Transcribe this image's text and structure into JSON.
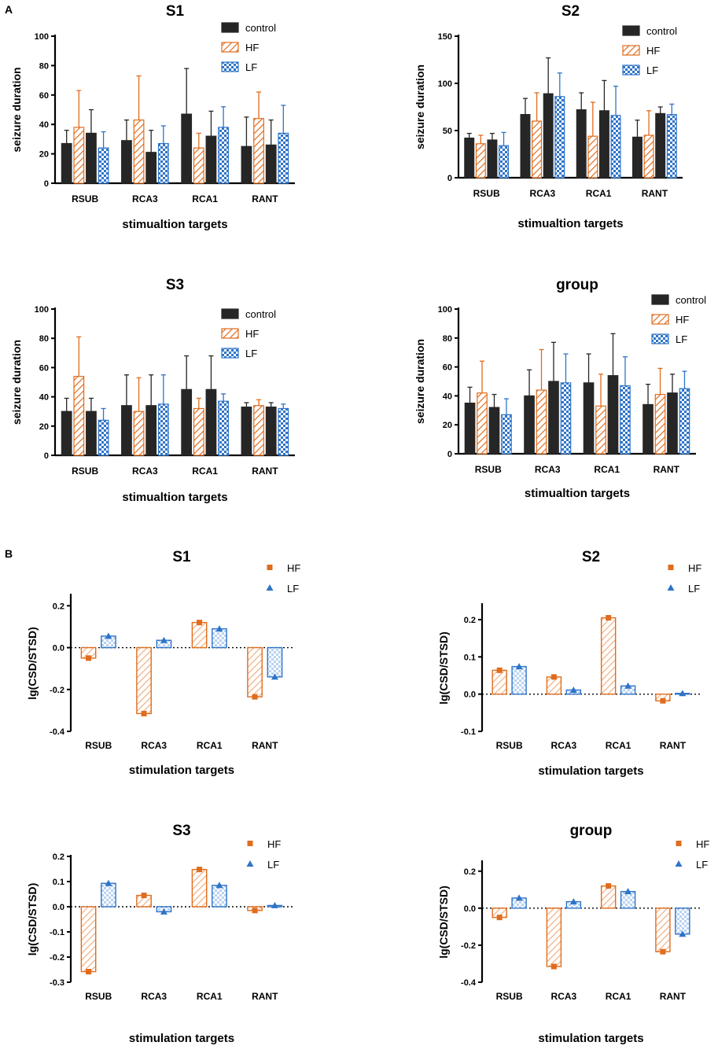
{
  "panel_labels": [
    "A",
    "B"
  ],
  "colors": {
    "control": "#262626",
    "hf": "#e06c1c",
    "lf": "#2f74c8",
    "axis": "#000000"
  },
  "chart_data": [
    {
      "type": "bar",
      "title": "S1",
      "xlabel": "stimualtion targets",
      "ylabel": "seizure duration",
      "categories": [
        "RSUB",
        "RCA3",
        "RCA1",
        "RANT"
      ],
      "ylim": [
        0,
        100
      ],
      "yticks": [
        0,
        20,
        40,
        60,
        80,
        100
      ],
      "legend": [
        "control",
        "HF",
        "LF"
      ],
      "series": [
        {
          "name": "control",
          "values": [
            27,
            29,
            47,
            25
          ],
          "errors": [
            9,
            14,
            31,
            20
          ]
        },
        {
          "name": "HF",
          "values": [
            38,
            43,
            24,
            44
          ],
          "errors": [
            25,
            30,
            10,
            18
          ]
        },
        {
          "name": "control",
          "values": [
            34,
            21,
            32,
            26
          ],
          "errors": [
            16,
            15,
            17,
            17
          ]
        },
        {
          "name": "LF",
          "values": [
            24,
            27,
            38,
            34
          ],
          "errors": [
            11,
            12,
            14,
            19
          ]
        }
      ]
    },
    {
      "type": "bar",
      "title": "S2",
      "xlabel": "stimualtion targets",
      "ylabel": "seizure duration",
      "categories": [
        "RSUB",
        "RCA3",
        "RCA1",
        "RANT"
      ],
      "ylim": [
        0,
        150
      ],
      "yticks": [
        0,
        50,
        100,
        150
      ],
      "legend": [
        "control",
        "HF",
        "LF"
      ],
      "series": [
        {
          "name": "control",
          "values": [
            42,
            67,
            72,
            43
          ],
          "errors": [
            5,
            17,
            18,
            18
          ]
        },
        {
          "name": "HF",
          "values": [
            36,
            60,
            44,
            45
          ],
          "errors": [
            9,
            30,
            36,
            26
          ]
        },
        {
          "name": "control",
          "values": [
            40,
            89,
            71,
            68
          ],
          "errors": [
            7,
            38,
            32,
            7
          ]
        },
        {
          "name": "LF",
          "values": [
            34,
            86,
            66,
            67
          ],
          "errors": [
            14,
            25,
            31,
            11
          ]
        }
      ]
    },
    {
      "type": "bar",
      "title": "S3",
      "xlabel": "stimualtion targets",
      "ylabel": "seizure duration",
      "categories": [
        "RSUB",
        "RCA3",
        "RCA1",
        "RANT"
      ],
      "ylim": [
        0,
        100
      ],
      "yticks": [
        0,
        20,
        40,
        60,
        80,
        100
      ],
      "legend": [
        "control",
        "HF",
        "LF"
      ],
      "series": [
        {
          "name": "control",
          "values": [
            30,
            34,
            45,
            33
          ],
          "errors": [
            9,
            21,
            23,
            3
          ]
        },
        {
          "name": "HF",
          "values": [
            54,
            30,
            32,
            34
          ],
          "errors": [
            27,
            23,
            7,
            4
          ]
        },
        {
          "name": "control",
          "values": [
            30,
            34,
            45,
            33
          ],
          "errors": [
            9,
            21,
            23,
            3
          ]
        },
        {
          "name": "LF",
          "values": [
            24,
            35,
            37,
            32
          ],
          "errors": [
            8,
            20,
            5,
            3
          ]
        }
      ]
    },
    {
      "type": "bar",
      "title": "group",
      "xlabel": "stimualtion targets",
      "ylabel": "seizure duration",
      "categories": [
        "RSUB",
        "RCA3",
        "RCA1",
        "RANT"
      ],
      "ylim": [
        0,
        100
      ],
      "yticks": [
        0,
        20,
        40,
        60,
        80,
        100
      ],
      "legend": [
        "control",
        "HF",
        "LF"
      ],
      "series": [
        {
          "name": "control",
          "values": [
            35,
            40,
            49,
            34
          ],
          "errors": [
            11,
            18,
            20,
            14
          ]
        },
        {
          "name": "HF",
          "values": [
            42,
            44,
            33,
            41
          ],
          "errors": [
            22,
            28,
            22,
            18
          ]
        },
        {
          "name": "control",
          "values": [
            32,
            50,
            54,
            42
          ],
          "errors": [
            9,
            27,
            29,
            13
          ]
        },
        {
          "name": "LF",
          "values": [
            27,
            49,
            47,
            45
          ],
          "errors": [
            11,
            20,
            20,
            12
          ]
        }
      ]
    },
    {
      "type": "bar",
      "title": "S1",
      "xlabel": "stimulation targets",
      "ylabel": "lg(CSD/STSD)",
      "categories": [
        "RSUB",
        "RCA3",
        "RCA1",
        "RANT"
      ],
      "ylim": [
        -0.4,
        0.25
      ],
      "yticks": [
        -0.4,
        -0.2,
        0.0,
        0.2
      ],
      "ytick_labels": [
        "-0.4",
        "-0.2",
        "0.0",
        "0.2"
      ],
      "legend": [
        "HF",
        "LF"
      ],
      "series": [
        {
          "name": "HF",
          "values": [
            -0.05,
            -0.315,
            0.12,
            -0.235
          ]
        },
        {
          "name": "LF",
          "values": [
            0.055,
            0.035,
            0.09,
            -0.14
          ]
        }
      ]
    },
    {
      "type": "bar",
      "title": "S2",
      "xlabel": "stimulation targets",
      "ylabel": "lg(CSD/STSD)",
      "categories": [
        "RSUB",
        "RCA3",
        "RCA1",
        "RANT"
      ],
      "ylim": [
        -0.1,
        0.24
      ],
      "yticks": [
        -0.1,
        0.0,
        0.1,
        0.2
      ],
      "ytick_labels": [
        "-0.1",
        "0.0",
        "0.1",
        "0.2"
      ],
      "legend": [
        "HF",
        "LF"
      ],
      "series": [
        {
          "name": "HF",
          "values": [
            0.064,
            0.046,
            0.205,
            -0.018
          ]
        },
        {
          "name": "LF",
          "values": [
            0.074,
            0.011,
            0.022,
            0.002
          ]
        }
      ]
    },
    {
      "type": "bar",
      "title": "S3",
      "xlabel": "stimulation targets",
      "ylabel": "lg(CSD/STSD)",
      "categories": [
        "RSUB",
        "RCA3",
        "RCA1",
        "RANT"
      ],
      "ylim": [
        -0.3,
        0.2
      ],
      "yticks": [
        -0.3,
        -0.2,
        -0.1,
        0.0,
        0.1,
        0.2
      ],
      "ytick_labels": [
        "-0.3",
        "-0.2",
        "-0.1",
        "0.0",
        "0.1",
        "0.2"
      ],
      "legend": [
        "HF",
        "LF"
      ],
      "series": [
        {
          "name": "HF",
          "values": [
            -0.258,
            0.045,
            0.148,
            -0.015
          ]
        },
        {
          "name": "LF",
          "values": [
            0.093,
            -0.02,
            0.085,
            0.005
          ]
        }
      ]
    },
    {
      "type": "bar",
      "title": "group",
      "xlabel": "stimulation targets",
      "ylabel": "lg(CSD/STSD)",
      "categories": [
        "RSUB",
        "RCA3",
        "RCA1",
        "RANT"
      ],
      "ylim": [
        -0.4,
        0.25
      ],
      "yticks": [
        -0.4,
        -0.2,
        0.0,
        0.2
      ],
      "ytick_labels": [
        "-0.4",
        "-0.2",
        "0.0",
        "0.2"
      ],
      "legend": [
        "HF",
        "LF"
      ],
      "series": [
        {
          "name": "HF",
          "values": [
            -0.05,
            -0.315,
            0.12,
            -0.235
          ]
        },
        {
          "name": "LF",
          "values": [
            0.055,
            0.035,
            0.09,
            -0.14
          ]
        }
      ]
    }
  ]
}
